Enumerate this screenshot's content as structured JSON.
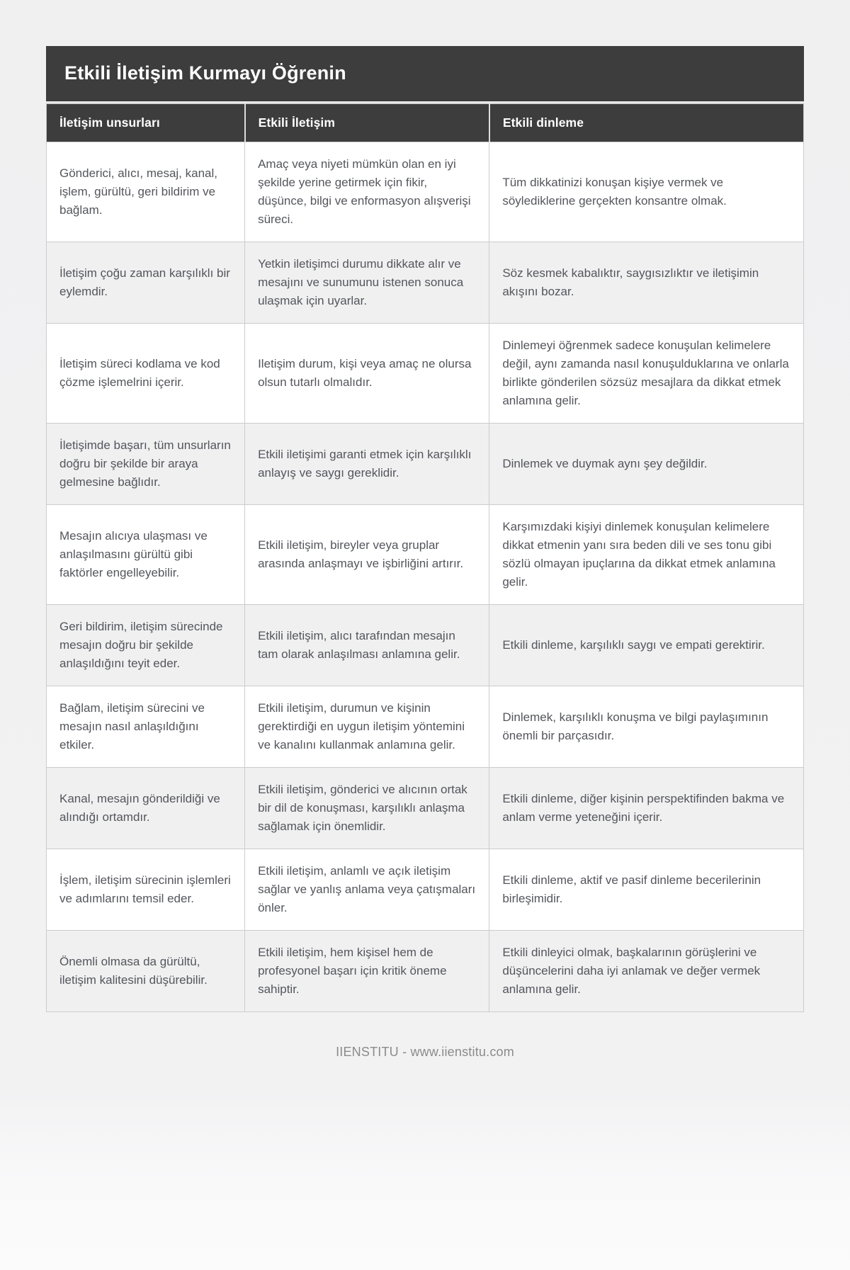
{
  "header": {
    "title": "Etkili İletişim Kurmayı Öğrenin"
  },
  "table": {
    "headers": [
      "İletişim unsurları",
      "Etkili İletişim",
      "Etkili dinleme"
    ],
    "rows": [
      [
        "Gönderici, alıcı, mesaj, kanal, işlem, gürültü, geri bildirim ve bağlam.",
        "Amaç veya niyeti mümkün olan en iyi şekilde yerine getirmek için fikir, düşünce, bilgi ve enformasyon alışverişi süreci.",
        "Tüm dikkatinizi konuşan kişiye vermek ve söylediklerine gerçekten konsantre olmak."
      ],
      [
        "İletişim çoğu zaman karşılıklı bir eylemdir.",
        "Yetkin iletişimci durumu dikkate alır ve mesajını ve sunumunu istenen sonuca ulaşmak için uyarlar.",
        "Söz kesmek kabalıktır, saygısızlıktır ve iletişimin akışını bozar."
      ],
      [
        "İletişim süreci kodlama ve kod çözme işlemelrini içerir.",
        "Iletişim durum, kişi veya amaç ne olursa olsun tutarlı olmalıdır.",
        "Dinlemeyi öğrenmek sadece konuşulan kelimelere değil, aynı zamanda nasıl konuşulduklarına ve onlarla birlikte gönderilen sözsüz mesajlara da dikkat etmek anlamına gelir."
      ],
      [
        "İletişimde başarı, tüm unsurların doğru bir şekilde bir araya gelmesine bağlıdır.",
        "Etkili iletişimi garanti etmek için karşılıklı anlayış ve saygı gereklidir.",
        "Dinlemek ve duymak aynı şey değildir."
      ],
      [
        "Mesajın alıcıya ulaşması ve anlaşılmasını gürültü gibi faktörler engelleyebilir.",
        "Etkili iletişim, bireyler veya gruplar arasında anlaşmayı ve işbirliğini artırır.",
        "Karşımızdaki kişiyi dinlemek konuşulan kelimelere dikkat etmenin yanı sıra beden dili ve ses tonu gibi sözlü olmayan ipuçlarına da dikkat etmek anlamına gelir."
      ],
      [
        "Geri bildirim, iletişim sürecinde mesajın doğru bir şekilde anlaşıldığını teyit eder.",
        "Etkili iletişim, alıcı tarafından mesajın tam olarak anlaşılması anlamına gelir.",
        "Etkili dinleme, karşılıklı saygı ve empati gerektirir."
      ],
      [
        "Bağlam, iletişim sürecini ve mesajın nasıl anlaşıldığını etkiler.",
        "Etkili iletişim, durumun ve kişinin gerektirdiği en uygun iletişim yöntemini ve kanalını kullanmak anlamına gelir.",
        "Dinlemek, karşılıklı konuşma ve bilgi paylaşımının önemli bir parçasıdır."
      ],
      [
        "Kanal, mesajın gönderildiği ve alındığı ortamdır.",
        "Etkili iletişim, gönderici ve alıcının ortak bir dil de konuşması, karşılıklı anlaşma sağlamak için önemlidir.",
        "Etkili dinleme, diğer kişinin perspektifinden bakma ve anlam verme yeteneğini içerir."
      ],
      [
        "İşlem, iletişim sürecinin işlemleri ve adımlarını temsil eder.",
        "Etkili iletişim, anlamlı ve açık iletişim sağlar ve yanlış anlama veya çatışmaları önler.",
        "Etkili dinleme, aktif ve pasif dinleme becerilerinin birleşimidir."
      ],
      [
        "Önemli olmasa da gürültü, iletişim kalitesini düşürebilir.",
        "Etkili iletişim, hem kişisel hem de profesyonel başarı için kritik öneme sahiptir.",
        "Etkili dinleyici olmak, başkalarının görüşlerini ve düşüncelerini daha iyi anlamak ve değer vermek anlamına gelir."
      ]
    ]
  },
  "footer": {
    "text": "IIENSTITU - www.iienstitu.com"
  },
  "colors": {
    "header_bg": "#3d3d3d",
    "row_alt_bg": "#f0f0f1",
    "body_text": "#54565c",
    "footer_text": "#8b8b8b"
  }
}
